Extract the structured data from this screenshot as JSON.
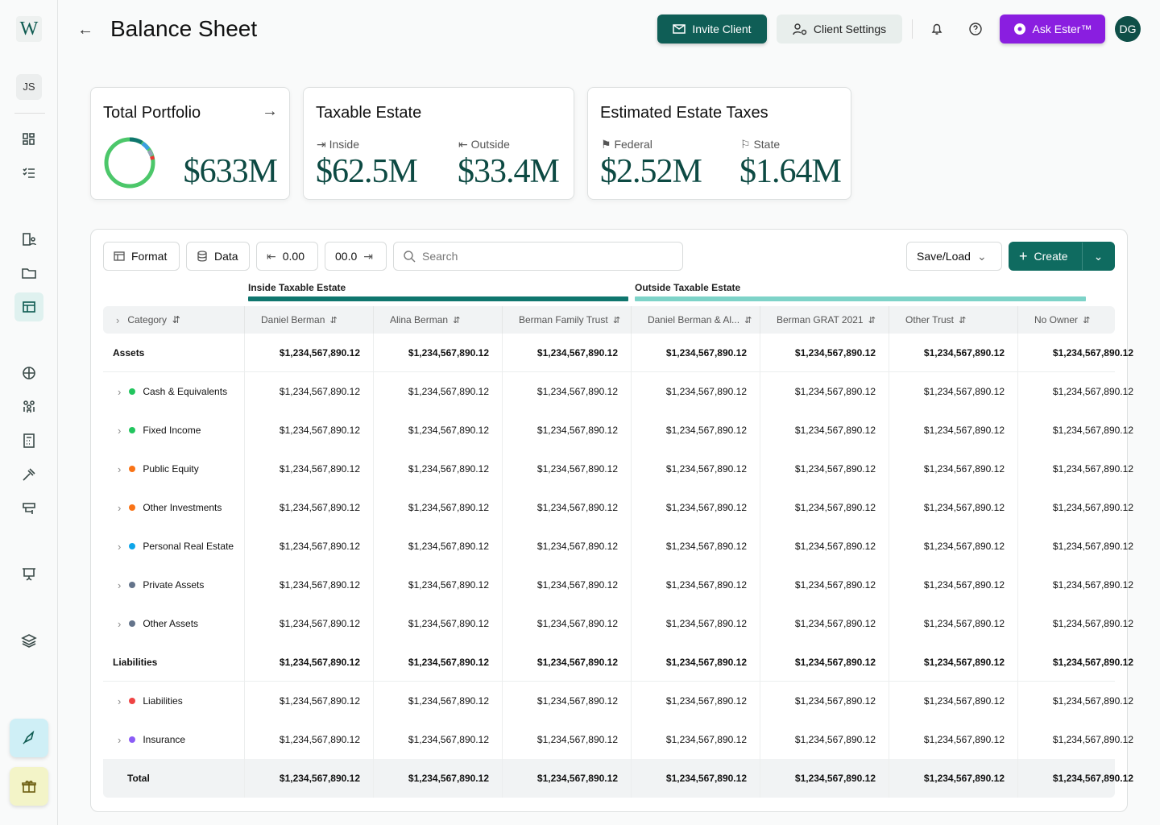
{
  "sidebar": {
    "logo": "W",
    "user": "JS"
  },
  "header": {
    "title": "Balance Sheet",
    "invite": "Invite Client",
    "settings": "Client Settings",
    "ask": "Ask Ester™",
    "avatar": "DG"
  },
  "cards": [
    {
      "title": "Total Portfolio",
      "value": "$633M"
    },
    {
      "title": "Taxable Estate",
      "items": [
        {
          "label": "Inside",
          "value": "$62.5M"
        },
        {
          "label": "Outside",
          "value": "$33.4M"
        }
      ]
    },
    {
      "title": "Estimated Estate Taxes",
      "items": [
        {
          "label": "Federal",
          "value": "$2.52M"
        },
        {
          "label": "State",
          "value": "$1.64M"
        }
      ]
    }
  ],
  "toolbar": {
    "format": "Format",
    "data": "Data",
    "decrease": "0.00",
    "increase": "00.0",
    "search": "Search",
    "save_load": "Save/Load",
    "create": "Create"
  },
  "table": {
    "groups": [
      {
        "label": "Inside Taxable Estate",
        "color": "#0f766e"
      },
      {
        "label": "Outside Taxable Estate",
        "color": "#7dd3c8"
      }
    ],
    "category_header": "Category",
    "columns": [
      "Daniel Berman",
      "Alina Berman",
      "Berman Family Trust",
      "Daniel Berman & Al...",
      "Berman GRAT 2021",
      "Other Trust",
      "No Owner"
    ],
    "rows": [
      {
        "label": "Assets",
        "type": "section",
        "values": [
          "$1,234,567,890.12",
          "$1,234,567,890.12",
          "$1,234,567,890.12",
          "$1,234,567,890.12",
          "$1,234,567,890.12",
          "$1,234,567,890.12",
          "$1,234,567,890.12"
        ]
      },
      {
        "label": "Cash & Equivalents",
        "type": "item",
        "dot": "#22c55e",
        "values": [
          "$1,234,567,890.12",
          "$1,234,567,890.12",
          "$1,234,567,890.12",
          "$1,234,567,890.12",
          "$1,234,567,890.12",
          "$1,234,567,890.12",
          "$1,234,567,890.12"
        ]
      },
      {
        "label": "Fixed Income",
        "type": "item",
        "dot": "#22c55e",
        "values": [
          "$1,234,567,890.12",
          "$1,234,567,890.12",
          "$1,234,567,890.12",
          "$1,234,567,890.12",
          "$1,234,567,890.12",
          "$1,234,567,890.12",
          "$1,234,567,890.12"
        ]
      },
      {
        "label": "Public Equity",
        "type": "item",
        "dot": "#f97316",
        "values": [
          "$1,234,567,890.12",
          "$1,234,567,890.12",
          "$1,234,567,890.12",
          "$1,234,567,890.12",
          "$1,234,567,890.12",
          "$1,234,567,890.12",
          "$1,234,567,890.12"
        ]
      },
      {
        "label": "Other Investments",
        "type": "item",
        "dot": "#f97316",
        "values": [
          "$1,234,567,890.12",
          "$1,234,567,890.12",
          "$1,234,567,890.12",
          "$1,234,567,890.12",
          "$1,234,567,890.12",
          "$1,234,567,890.12",
          "$1,234,567,890.12"
        ]
      },
      {
        "label": "Personal Real Estate",
        "type": "item",
        "dot": "#0ea5e9",
        "values": [
          "$1,234,567,890.12",
          "$1,234,567,890.12",
          "$1,234,567,890.12",
          "$1,234,567,890.12",
          "$1,234,567,890.12",
          "$1,234,567,890.12",
          "$1,234,567,890.12"
        ]
      },
      {
        "label": "Private Assets",
        "type": "item",
        "dot": "#64748b",
        "values": [
          "$1,234,567,890.12",
          "$1,234,567,890.12",
          "$1,234,567,890.12",
          "$1,234,567,890.12",
          "$1,234,567,890.12",
          "$1,234,567,890.12",
          "$1,234,567,890.12"
        ]
      },
      {
        "label": "Other Assets",
        "type": "item",
        "dot": "#64748b",
        "values": [
          "$1,234,567,890.12",
          "$1,234,567,890.12",
          "$1,234,567,890.12",
          "$1,234,567,890.12",
          "$1,234,567,890.12",
          "$1,234,567,890.12",
          "$1,234,567,890.12"
        ]
      },
      {
        "label": "Liabilities",
        "type": "section",
        "values": [
          "$1,234,567,890.12",
          "$1,234,567,890.12",
          "$1,234,567,890.12",
          "$1,234,567,890.12",
          "$1,234,567,890.12",
          "$1,234,567,890.12",
          "$1,234,567,890.12"
        ]
      },
      {
        "label": "Liabilities",
        "type": "item",
        "dot": "#ef4444",
        "values": [
          "$1,234,567,890.12",
          "$1,234,567,890.12",
          "$1,234,567,890.12",
          "$1,234,567,890.12",
          "$1,234,567,890.12",
          "$1,234,567,890.12",
          "$1,234,567,890.12"
        ]
      },
      {
        "label": "Insurance",
        "type": "item",
        "dot": "#8b5cf6",
        "values": [
          "$1,234,567,890.12",
          "$1,234,567,890.12",
          "$1,234,567,890.12",
          "$1,234,567,890.12",
          "$1,234,567,890.12",
          "$1,234,567,890.12",
          "$1,234,567,890.12"
        ]
      },
      {
        "label": "Total",
        "type": "total",
        "values": [
          "$1,234,567,890.12",
          "$1,234,567,890.12",
          "$1,234,567,890.12",
          "$1,234,567,890.12",
          "$1,234,567,890.12",
          "$1,234,567,890.12",
          "$1,234,567,890.12"
        ]
      }
    ]
  }
}
